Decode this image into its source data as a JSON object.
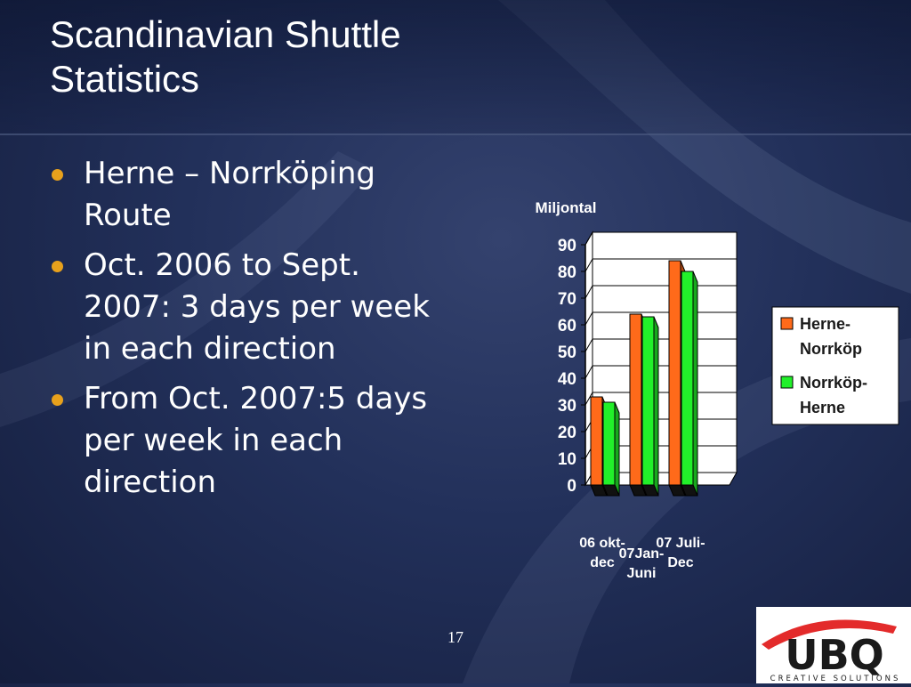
{
  "slide": {
    "title": "Scandinavian Shuttle Statistics",
    "bullets": [
      "Herne – Norrköping Route",
      "Oct. 2006 to Sept. 2007: 3 days per week in each direction",
      "From Oct. 2007:5 days per week in each direction"
    ],
    "page_number": "17"
  },
  "logo": {
    "main": "UBQ",
    "tagline": "CREATIVE SOLUTIONS",
    "colors": {
      "red": "#e32b2b",
      "text": "#1a1a1a"
    }
  },
  "chart_data": {
    "type": "bar",
    "style": "3d-clustered",
    "title": "Miljontal",
    "categories": [
      "06 okt-dec",
      "07Jan-Juni",
      "07 Juli-Dec"
    ],
    "category_lines": [
      [
        "06 okt-",
        "dec"
      ],
      [
        "07Jan-",
        "Juni"
      ],
      [
        "07 Juli-",
        "Dec"
      ]
    ],
    "series": [
      {
        "name": "Herne-Norrköp",
        "legend_lines": [
          "Herne-",
          "Norrköp"
        ],
        "color": "#ff6a1a",
        "values": [
          33,
          64,
          84
        ]
      },
      {
        "name": "Norrköp-Herne",
        "legend_lines": [
          "Norrköp-",
          "Herne"
        ],
        "color": "#22f02a",
        "values": [
          31,
          63,
          80
        ]
      }
    ],
    "ylim": [
      0,
      90
    ],
    "yticks": [
      0,
      10,
      20,
      30,
      40,
      50,
      60,
      70,
      80,
      90
    ],
    "grid": true,
    "legend": "right"
  }
}
